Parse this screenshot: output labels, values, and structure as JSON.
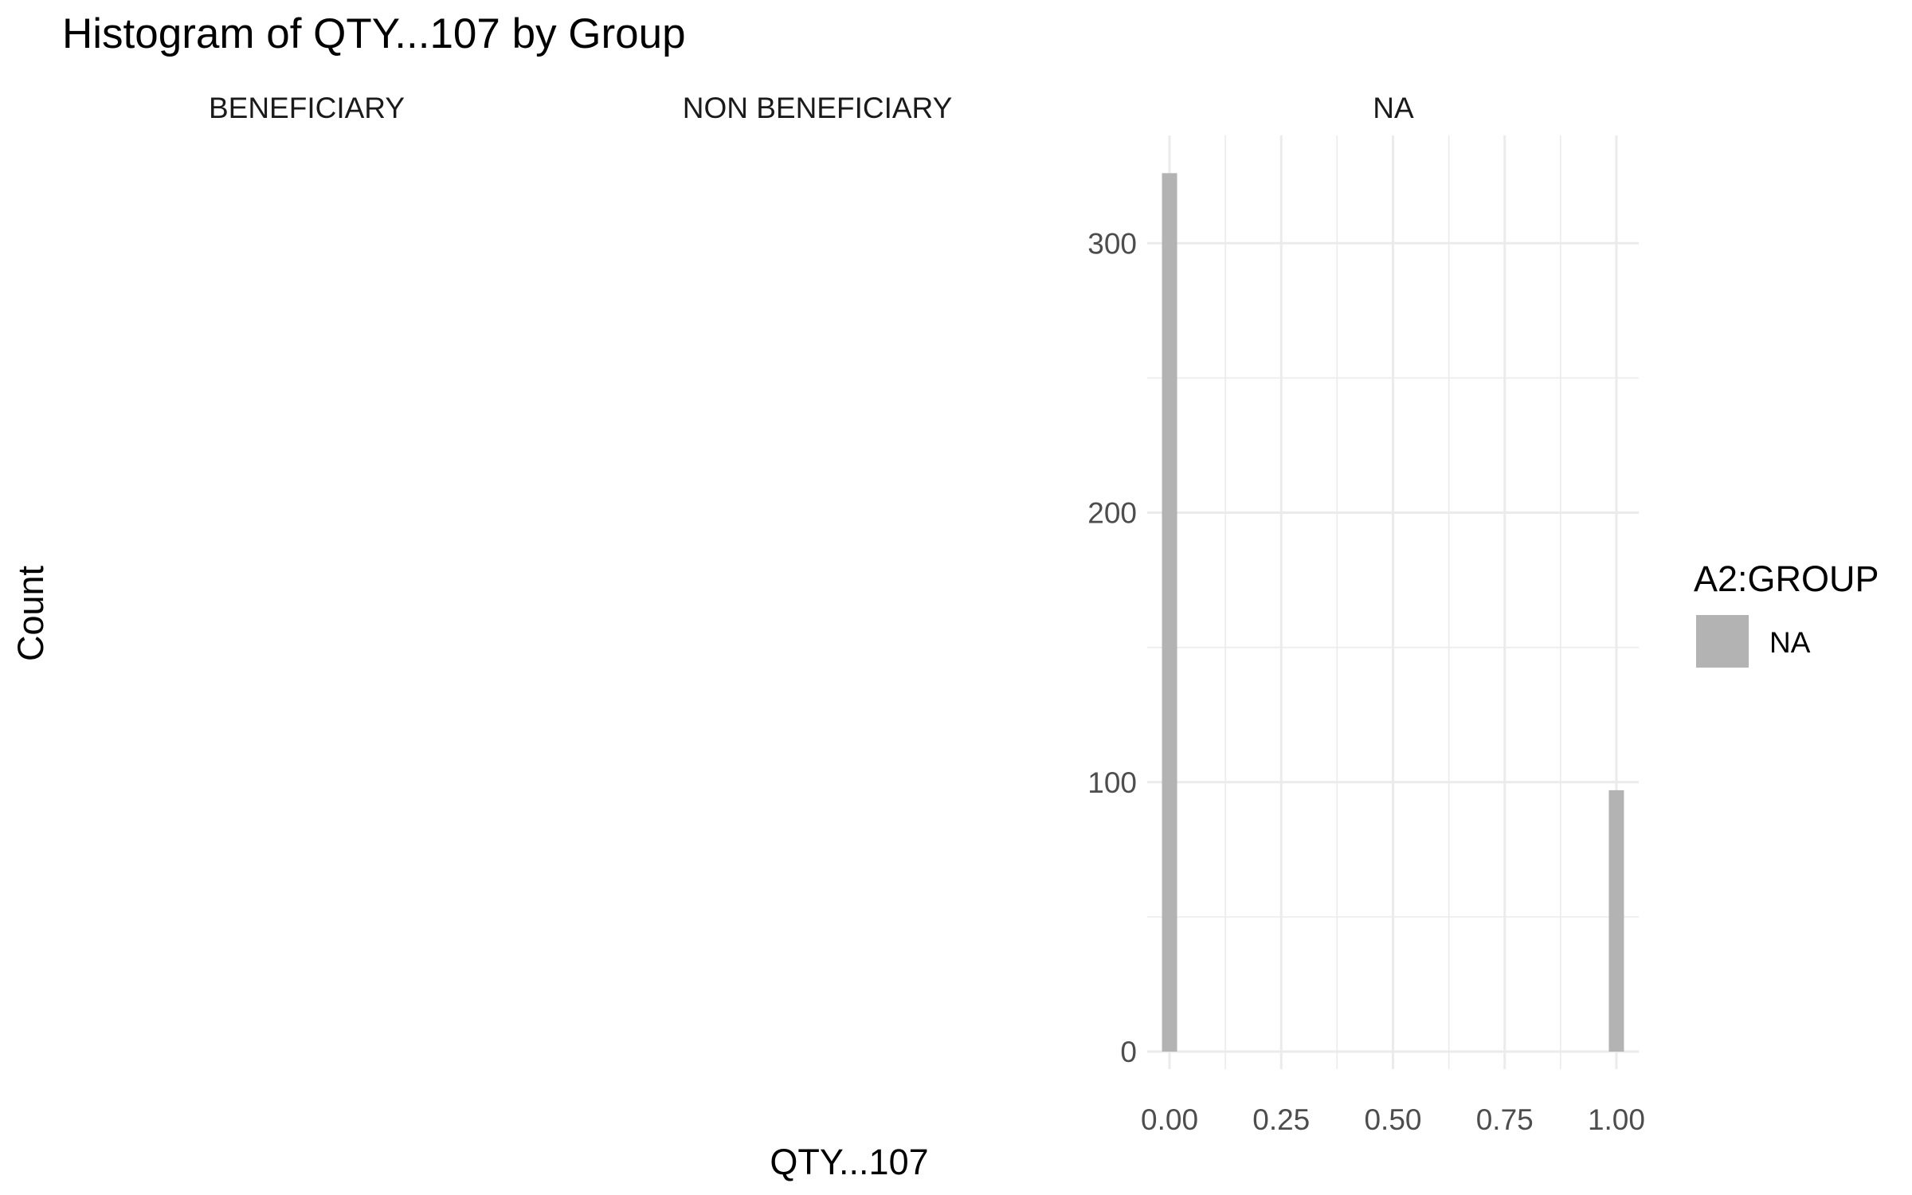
{
  "chart_data": {
    "type": "bar",
    "title": "Histogram of QTY...107 by Group",
    "xlabel": "QTY...107",
    "ylabel": "Count",
    "facets": [
      {
        "label": "BENEFICIARY",
        "bins": []
      },
      {
        "label": "NON BENEFICIARY",
        "bins": []
      },
      {
        "label": "NA",
        "bins": [
          {
            "x": 0.0,
            "count": 326
          },
          {
            "x": 1.0,
            "count": 97
          }
        ]
      }
    ],
    "xlim": [
      -0.05,
      1.05
    ],
    "ylim": [
      0,
      340
    ],
    "x_ticks": [
      0.0,
      0.25,
      0.5,
      0.75,
      1.0
    ],
    "x_tick_labels": [
      "0.00",
      "0.25",
      "0.50",
      "0.75",
      "1.00"
    ],
    "y_ticks": [
      0,
      100,
      200,
      300
    ],
    "y_tick_labels": [
      "0",
      "100",
      "200",
      "300"
    ],
    "grid": true,
    "legend": {
      "title": "A2:GROUP",
      "position": "right",
      "entries": [
        {
          "name": "NA",
          "color": "#b3b3b3"
        }
      ]
    },
    "bar_color": "#b3b3b3",
    "grid_color": "#ebebeb"
  }
}
